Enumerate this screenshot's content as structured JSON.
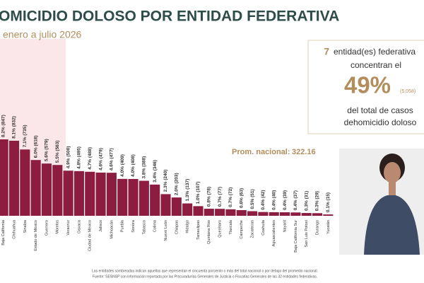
{
  "chart_data": {
    "type": "bar",
    "title": "OMICIDIO DOLOSO POR ENTIDAD FEDERATIVA",
    "subtitle": "enero a julio 2026",
    "categories": [
      "Baja California",
      "Chihuahua",
      "Sinaloa",
      "Estado de México",
      "Guerrero",
      "Morelos",
      "Veracruz",
      "Oaxaca",
      "Ciudad de México",
      "Jalisco",
      "Michoacán",
      "Puebla",
      "Sonora",
      "Tabasco",
      "Colima",
      "Nuevo León",
      "Chiapas",
      "Hidalgo",
      "Tamaulipas",
      "Quintana Roo",
      "Querétaro",
      "Tlaxcala",
      "Campeche",
      "Zacatecas",
      "Coahuila",
      "Aguascalientes",
      "Nayarit",
      "Baja California Sur",
      "San Luis Potosí",
      "Durango",
      "Yucatán"
    ],
    "values": [
      847,
      832,
      735,
      618,
      579,
      563,
      500,
      495,
      488,
      479,
      477,
      409,
      408,
      388,
      346,
      240,
      203,
      137,
      107,
      78,
      77,
      72,
      63,
      51,
      42,
      40,
      39,
      37,
      31,
      29,
      15
    ],
    "value_labels": [
      "8.2% (847)",
      "8.1% (832)",
      "7.1% (735)",
      "6.0% (618)",
      "5.6% (579)",
      "5.5% (563)",
      "4.9% (500)",
      "4.8% (495)",
      "4.7% (488)",
      "4.6% (479)",
      "4.6% (477)",
      "4.0% (409)",
      "4.0% (408)",
      "3.8% (388)",
      "3.4% (346)",
      "2.3% (240)",
      "2.0% (203)",
      "1.3% (137)",
      "1.0% (107)",
      "0.8% (78)",
      "0.7% (77)",
      "0.7% (72)",
      "0.6% (63)",
      "0.5% (51)",
      "0.4% (42)",
      "0.4% (40)",
      "0.4% (39)",
      "0.4% (37)",
      "0.3% (31)",
      "0.3% (29)",
      "0.1% (15)"
    ],
    "color": "#8c1d40",
    "average_label": "Prom. nacional:",
    "average": 322.16,
    "callout": {
      "count": 7,
      "line1": "entidad(es) federativa",
      "line2": "concentran el",
      "share": "49%",
      "total": "(5,058)",
      "line3": "del total de casos",
      "line4": "dehomicidio doloso"
    },
    "footnotes": [
      "Las entidades sombreadas indican aquellas que representan el cincuenta porciento o más del total nacional o por debajo del promedio nacional.",
      "Fuente: SESNSP con información reportada por las Procuradurías Generales de Justicia o Fiscalías Generales de las 32 entidades federativas."
    ]
  }
}
